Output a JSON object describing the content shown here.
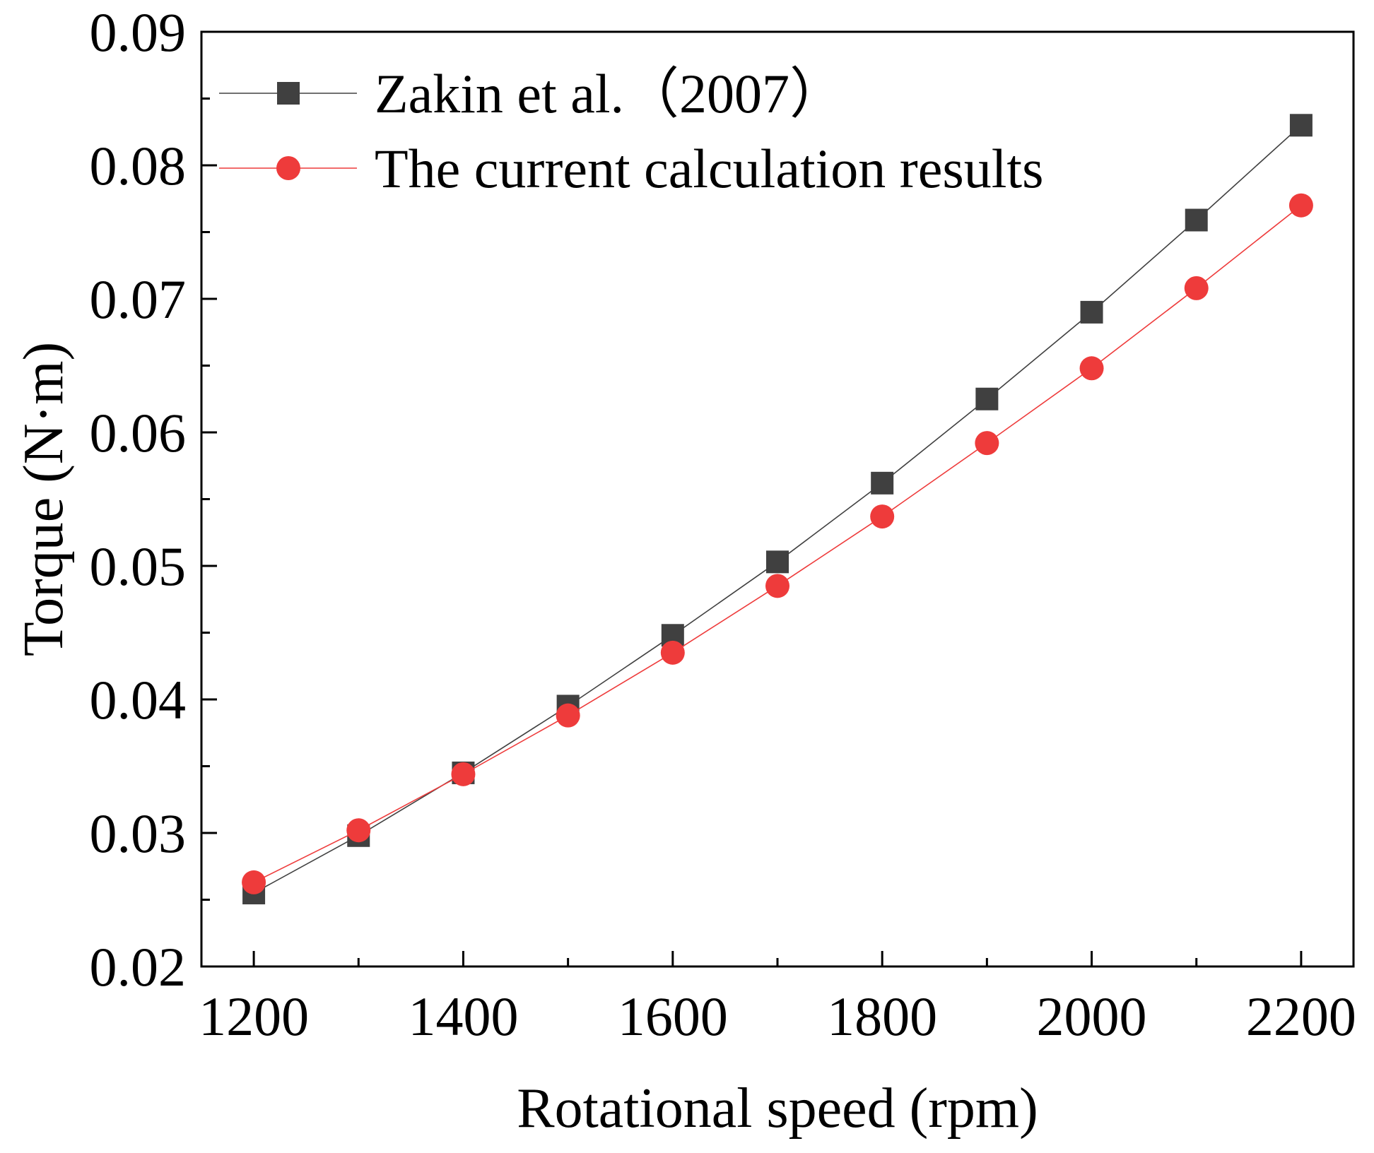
{
  "chart_data": {
    "type": "line",
    "xlabel": "Rotational speed (rpm)",
    "ylabel": "Torque (N·m)",
    "xlim": [
      1150,
      2250
    ],
    "ylim": [
      0.02,
      0.09
    ],
    "x_ticks": [
      1200,
      1400,
      1600,
      1800,
      2000,
      2200
    ],
    "x_tick_labels": [
      "1200",
      "1400",
      "1600",
      "1800",
      "2000",
      "2200"
    ],
    "x_minor_ticks": [
      1300,
      1500,
      1700,
      1900,
      2100
    ],
    "y_ticks": [
      0.02,
      0.03,
      0.04,
      0.05,
      0.06,
      0.07,
      0.08,
      0.09
    ],
    "y_tick_labels": [
      "0.02",
      "0.03",
      "0.04",
      "0.05",
      "0.06",
      "0.07",
      "0.08",
      "0.09"
    ],
    "y_minor_ticks": [
      0.025,
      0.035,
      0.045,
      0.055,
      0.065,
      0.075,
      0.085
    ],
    "grid": false,
    "legend_position": "top-left",
    "x": [
      1200,
      1300,
      1400,
      1500,
      1600,
      1700,
      1800,
      1900,
      2000,
      2100,
      2200
    ],
    "series": [
      {
        "name": "Zakin et al.（2007）",
        "marker": "square",
        "color": "#404040",
        "values": [
          0.0255,
          0.0298,
          0.0345,
          0.0395,
          0.0448,
          0.0503,
          0.0562,
          0.0625,
          0.069,
          0.0759,
          0.083
        ]
      },
      {
        "name": "The current calculation results",
        "marker": "circle",
        "color": "#ee3b3b",
        "values": [
          0.0263,
          0.0302,
          0.0344,
          0.0388,
          0.0435,
          0.0485,
          0.0537,
          0.0592,
          0.0648,
          0.0708,
          0.077
        ]
      }
    ]
  }
}
